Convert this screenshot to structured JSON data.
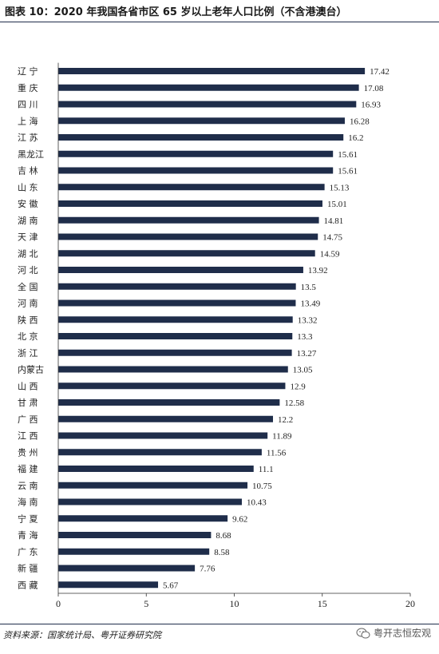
{
  "title": "图表 10：2020 年我国各省市区 65 岁以上老年人口比例（不含港澳台）",
  "source": "资料来源：国家统计局、粤开证券研究院",
  "watermark": "粤开志恒宏观",
  "colors": {
    "bar": "#1f2d4a",
    "rule": "#1f2d4a",
    "text": "#222222"
  },
  "chart_data": {
    "type": "bar",
    "orientation": "horizontal",
    "categories": [
      "辽 宁",
      "重 庆",
      "四 川",
      "上 海",
      "江 苏",
      "黑龙江",
      "吉 林",
      "山 东",
      "安 徽",
      "湖 南",
      "天 津",
      "湖 北",
      "河 北",
      "全 国",
      "河 南",
      "陕 西",
      "北 京",
      "浙 江",
      "内蒙古",
      "山 西",
      "甘 肃",
      "广 西",
      "江 西",
      "贵 州",
      "福 建",
      "云 南",
      "海 南",
      "宁 夏",
      "青 海",
      "广 东",
      "新 疆",
      "西 藏"
    ],
    "values": [
      17.42,
      17.08,
      16.93,
      16.28,
      16.2,
      15.61,
      15.61,
      15.13,
      15.01,
      14.81,
      14.75,
      14.59,
      13.92,
      13.5,
      13.49,
      13.32,
      13.3,
      13.27,
      13.05,
      12.9,
      12.58,
      12.2,
      11.89,
      11.56,
      11.1,
      10.75,
      10.43,
      9.62,
      8.68,
      8.58,
      7.76,
      5.67
    ],
    "value_labels": [
      "17.42",
      "17.08",
      "16.93",
      "16.28",
      "16.2",
      "15.61",
      "15.61",
      "15.13",
      "15.01",
      "14.81",
      "14.75",
      "14.59",
      "13.92",
      "13.5",
      "13.49",
      "13.32",
      "13.3",
      "13.27",
      "13.05",
      "12.9",
      "12.58",
      "12.2",
      "11.89",
      "11.56",
      "11.1",
      "10.75",
      "10.43",
      "9.62",
      "8.68",
      "8.58",
      "7.76",
      "5.67"
    ],
    "xlim": [
      0,
      20
    ],
    "xticks": [
      "0",
      "5",
      "10",
      "15",
      "20"
    ],
    "grid": false,
    "legend": "none"
  }
}
